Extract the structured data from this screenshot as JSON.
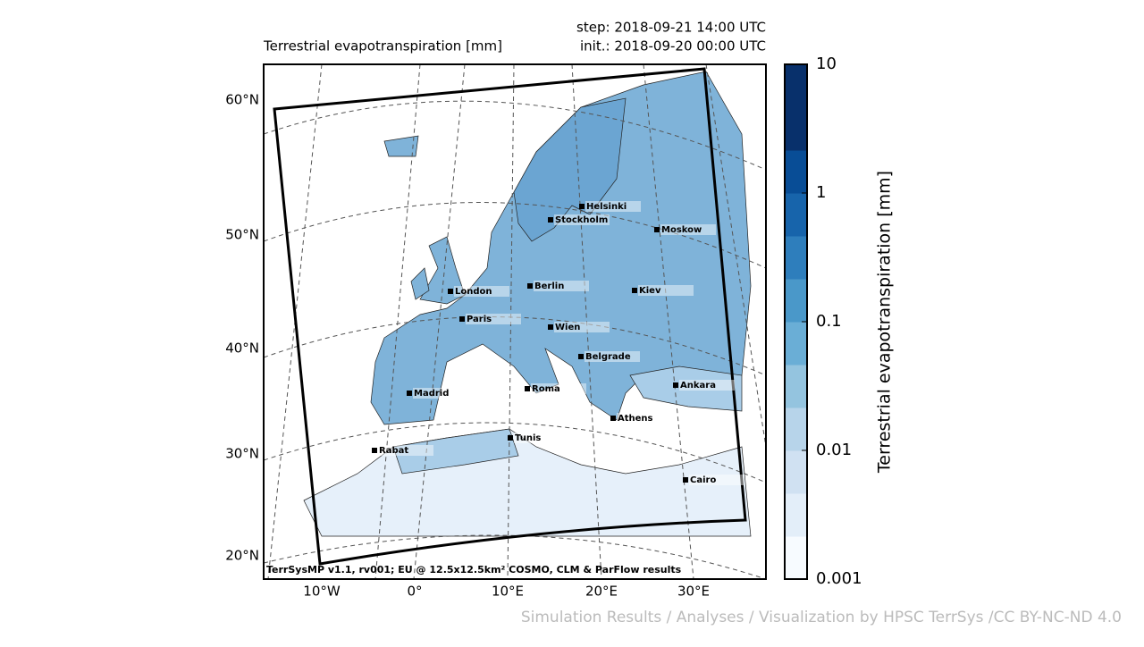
{
  "header": {
    "title": "Terrestrial evapotranspiration [mm]",
    "step": "step: 2018-09-21 14:00 UTC",
    "init": "init.: 2018-09-20 00:00 UTC"
  },
  "map": {
    "lat_labels": [
      "60°N",
      "50°N",
      "40°N",
      "30°N",
      "20°N"
    ],
    "lon_labels": [
      "10°W",
      "0°",
      "10°E",
      "20°E",
      "30°E"
    ],
    "cities": [
      "Helsinki",
      "Stockholm",
      "Moskow",
      "London",
      "Berlin",
      "Kiev",
      "Paris",
      "Wien",
      "Belgrade",
      "Madrid",
      "Roma",
      "Ankara",
      "Athens",
      "Tunis",
      "Rabat",
      "Cairo"
    ],
    "footer": "TerrSysMP v1.1, rv001; EU @ 12.5x12.5km² COSMO, CLM & ParFlow results"
  },
  "colorbar": {
    "label": "Terrestrial evapotranspiration [mm]",
    "lim": [
      0.001,
      10
    ],
    "ticks": [
      0.001,
      0.01,
      0.1,
      1,
      10
    ],
    "log": true,
    "colors": [
      "#f7fbff",
      "#e3eef9",
      "#d0e1f2",
      "#b7d4ea",
      "#94c4df",
      "#6aaed6",
      "#4a98c9",
      "#2e7ebc",
      "#1764ab",
      "#084d96",
      "#08306b",
      "#08306b"
    ]
  },
  "credit": "Simulation Results / Analyses / Visualization by HPSC TerrSys /CC BY-NC-ND 4.0"
}
